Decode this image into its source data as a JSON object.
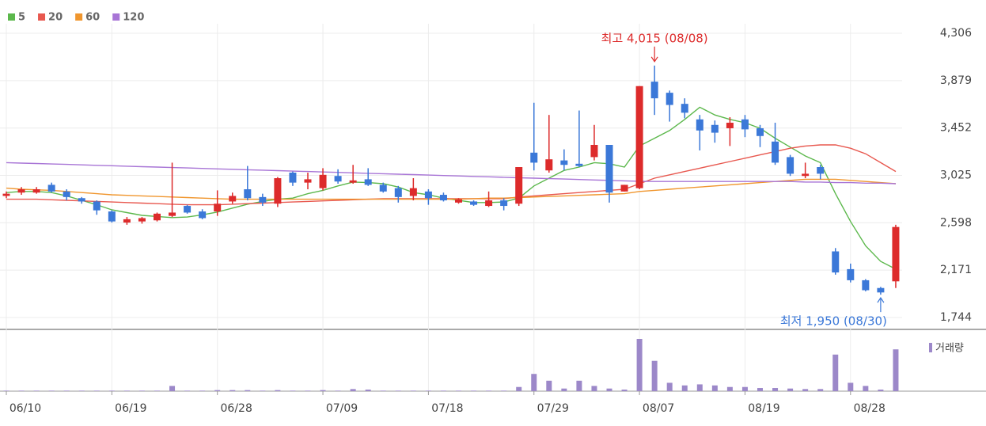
{
  "chart_data": {
    "type": "candlestick",
    "categories": [
      "06/10",
      null,
      null,
      null,
      null,
      null,
      null,
      "06/19",
      null,
      null,
      null,
      null,
      null,
      null,
      "06/28",
      null,
      null,
      null,
      null,
      null,
      null,
      "07/09",
      null,
      null,
      null,
      null,
      null,
      null,
      "07/18",
      null,
      null,
      null,
      null,
      null,
      null,
      "07/29",
      null,
      null,
      null,
      null,
      null,
      null,
      "08/07",
      null,
      null,
      null,
      null,
      null,
      null,
      "08/19",
      null,
      null,
      null,
      null,
      null,
      null,
      "08/28",
      null,
      null,
      null
    ],
    "open": [
      2840,
      2870,
      2870,
      2940,
      2880,
      2820,
      2790,
      2700,
      2600,
      2610,
      2620,
      2660,
      2750,
      2700,
      2700,
      2790,
      2900,
      2830,
      2770,
      3050,
      2960,
      2910,
      3020,
      2960,
      2990,
      2940,
      2910,
      2840,
      2880,
      2850,
      2780,
      2790,
      2750,
      2800,
      2770,
      3230,
      3070,
      3160,
      3130,
      3190,
      3300,
      2880,
      2910,
      3870,
      3770,
      3670,
      3530,
      3480,
      3450,
      3530,
      3450,
      3330,
      3190,
      3020,
      3100,
      2340,
      2180,
      2080,
      2010,
      2070
    ],
    "high": [
      2880,
      2920,
      2920,
      2960,
      2900,
      2830,
      2800,
      2710,
      2650,
      2650,
      2690,
      3140,
      2760,
      2720,
      2890,
      2870,
      3110,
      2860,
      3010,
      3060,
      3050,
      3090,
      3080,
      3120,
      3090,
      2960,
      2930,
      3000,
      2900,
      2870,
      2820,
      2800,
      2880,
      2820,
      3100,
      3680,
      3570,
      3260,
      3610,
      3480,
      3300,
      2940,
      3830,
      4015,
      3790,
      3720,
      3570,
      3520,
      3550,
      3570,
      3480,
      3500,
      3210,
      3140,
      3120,
      2370,
      2230,
      2090,
      2020,
      2580
    ],
    "low": [
      2820,
      2850,
      2860,
      2870,
      2800,
      2770,
      2670,
      2600,
      2580,
      2590,
      2610,
      2650,
      2680,
      2630,
      2660,
      2770,
      2800,
      2750,
      2740,
      2930,
      2900,
      2890,
      2950,
      2950,
      2930,
      2870,
      2780,
      2800,
      2760,
      2790,
      2770,
      2750,
      2740,
      2710,
      2750,
      3070,
      3050,
      3070,
      3100,
      3160,
      2780,
      2880,
      2900,
      3570,
      3510,
      3540,
      3250,
      3320,
      3290,
      3370,
      3280,
      3120,
      3020,
      3000,
      2990,
      2130,
      2060,
      1980,
      1950,
      2010
    ],
    "close": [
      2860,
      2900,
      2900,
      2880,
      2830,
      2790,
      2710,
      2610,
      2630,
      2640,
      2680,
      2690,
      2690,
      2640,
      2770,
      2840,
      2820,
      2780,
      3000,
      2960,
      2990,
      3030,
      2970,
      2980,
      2940,
      2880,
      2830,
      2910,
      2820,
      2800,
      2810,
      2760,
      2800,
      2750,
      3100,
      3140,
      3170,
      3120,
      3110,
      3300,
      2870,
      2940,
      3830,
      3720,
      3660,
      3590,
      3430,
      3410,
      3500,
      3440,
      3380,
      3140,
      3040,
      3040,
      3040,
      2150,
      2080,
      1990,
      1970,
      2560
    ],
    "up_color": "#dd2b2b",
    "down_color": "#3b78d8",
    "series": [
      {
        "name": "5",
        "color": "#5cb84c",
        "values": [
          2870,
          2880,
          2880,
          2870,
          2840,
          2800,
          2760,
          2715,
          2690,
          2665,
          2655,
          2645,
          2650,
          2670,
          2695,
          2730,
          2765,
          2790,
          2810,
          2820,
          2860,
          2890,
          2930,
          2965,
          2960,
          2950,
          2920,
          2870,
          2850,
          2820,
          2800,
          2780,
          2780,
          2785,
          2820,
          2930,
          3000,
          3070,
          3100,
          3140,
          3130,
          3100,
          3290,
          3360,
          3430,
          3530,
          3640,
          3570,
          3530,
          3500,
          3450,
          3360,
          3280,
          3200,
          3140,
          2860,
          2610,
          2390,
          2250,
          2180
        ]
      },
      {
        "name": "20",
        "color": "#e8584f",
        "values": [
          2810,
          2810,
          2810,
          2805,
          2800,
          2795,
          2790,
          2785,
          2780,
          2775,
          2770,
          2765,
          2760,
          2760,
          2760,
          2765,
          2770,
          2775,
          2780,
          2785,
          2790,
          2795,
          2800,
          2805,
          2810,
          2815,
          2815,
          2815,
          2815,
          2815,
          2815,
          2815,
          2815,
          2815,
          2830,
          2840,
          2850,
          2860,
          2870,
          2880,
          2890,
          2900,
          2950,
          3000,
          3030,
          3060,
          3090,
          3120,
          3150,
          3180,
          3210,
          3240,
          3270,
          3290,
          3300,
          3300,
          3270,
          3220,
          3140,
          3060
        ]
      },
      {
        "name": "60",
        "color": "#f0962e",
        "values": [
          2910,
          2900,
          2895,
          2890,
          2880,
          2870,
          2860,
          2850,
          2845,
          2840,
          2835,
          2830,
          2825,
          2820,
          2815,
          2810,
          2810,
          2810,
          2810,
          2810,
          2810,
          2810,
          2810,
          2810,
          2810,
          2810,
          2810,
          2810,
          2810,
          2810,
          2810,
          2815,
          2820,
          2820,
          2825,
          2830,
          2835,
          2840,
          2845,
          2850,
          2855,
          2860,
          2880,
          2890,
          2900,
          2910,
          2920,
          2930,
          2940,
          2950,
          2960,
          2970,
          2980,
          2990,
          2990,
          2990,
          2980,
          2970,
          2960,
          2950
        ]
      },
      {
        "name": "120",
        "color": "#a875d6",
        "values": [
          3140,
          3136,
          3132,
          3128,
          3124,
          3120,
          3116,
          3112,
          3108,
          3104,
          3100,
          3096,
          3092,
          3088,
          3084,
          3080,
          3076,
          3072,
          3068,
          3064,
          3060,
          3056,
          3052,
          3048,
          3044,
          3040,
          3036,
          3032,
          3028,
          3024,
          3020,
          3016,
          3012,
          3008,
          3004,
          3000,
          2996,
          2992,
          2988,
          2984,
          2980,
          2976,
          2972,
          2970,
          2970,
          2970,
          2970,
          2970,
          2970,
          2970,
          2970,
          2970,
          2970,
          2965,
          2965,
          2960,
          2960,
          2955,
          2955,
          2950
        ]
      }
    ],
    "ylim": [
      1644,
      4392
    ],
    "yticks": [
      {
        "value": 1744,
        "label": "1,744"
      },
      {
        "value": 2171,
        "label": "2,171"
      },
      {
        "value": 2598,
        "label": "2,598"
      },
      {
        "value": 3025,
        "label": "3,025"
      },
      {
        "value": 3452,
        "label": "3,452"
      },
      {
        "value": 3879,
        "label": "3,879"
      },
      {
        "value": 4306,
        "label": "4,306"
      }
    ],
    "grid": true,
    "annotations": [
      {
        "text": "최고 4,015 (08/08)",
        "kind": "high",
        "value": 4015,
        "color": "#dd2b2b"
      },
      {
        "text": "최저 1,950 (08/30)",
        "kind": "low",
        "value": 1950,
        "color": "#3b78d8"
      }
    ],
    "volume": {
      "name": "거래량",
      "color": "#9c88c9",
      "ylim": [
        0,
        100
      ],
      "values": [
        1,
        1,
        1,
        1,
        1,
        1,
        1,
        1,
        1,
        1,
        1,
        10,
        1,
        1,
        2,
        2,
        2,
        1,
        2,
        1,
        1,
        2,
        1,
        4,
        3,
        1,
        1,
        1,
        1,
        1,
        1,
        1,
        1,
        1,
        8,
        33,
        20,
        5,
        20,
        10,
        5,
        3,
        100,
        58,
        16,
        11,
        13,
        11,
        8,
        8,
        6,
        6,
        5,
        4,
        4,
        70,
        16,
        10,
        3,
        80
      ]
    }
  }
}
